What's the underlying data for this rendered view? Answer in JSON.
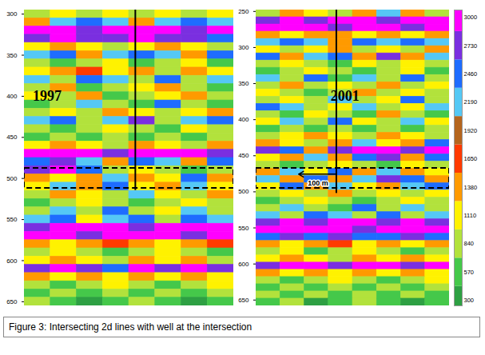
{
  "chart_data": [
    {
      "type": "heatmap",
      "annotations": [
        "1997"
      ],
      "tick_labels": "y",
      "ylim": [
        295,
        655
      ],
      "yticks": [
        300,
        350,
        400,
        450,
        500,
        550,
        600,
        650
      ],
      "y_edges": [
        295,
        305,
        315,
        325,
        335,
        345,
        355,
        365,
        375,
        385,
        395,
        405,
        415,
        425,
        435,
        445,
        455,
        465,
        475,
        485,
        495,
        505,
        515,
        525,
        535,
        545,
        555,
        565,
        575,
        585,
        595,
        605,
        615,
        625,
        635,
        645,
        655
      ],
      "cells": [
        [
          840,
          1110,
          840,
          1110,
          840,
          1110,
          840,
          1110
        ],
        [
          1380,
          2190,
          2460,
          2190,
          1380,
          2190,
          2460,
          2190
        ],
        [
          3000,
          3000,
          2730,
          3000,
          3000,
          3000,
          2730,
          3000
        ],
        [
          2730,
          3000,
          2730,
          2730,
          3000,
          2730,
          2730,
          2460
        ],
        [
          1110,
          1380,
          1110,
          840,
          1110,
          1380,
          1110,
          840
        ],
        [
          2190,
          2460,
          1380,
          2190,
          2460,
          2190,
          1380,
          2460
        ],
        [
          840,
          570,
          840,
          1110,
          570,
          840,
          1110,
          570
        ],
        [
          1110,
          1380,
          1650,
          1110,
          1380,
          840,
          1380,
          1110
        ],
        [
          2190,
          840,
          2460,
          2190,
          840,
          2460,
          840,
          2190
        ],
        [
          840,
          1380,
          570,
          840,
          1110,
          1380,
          840,
          570
        ],
        [
          1110,
          840,
          1380,
          570,
          840,
          1110,
          1380,
          840
        ],
        [
          570,
          840,
          2190,
          840,
          570,
          2460,
          840,
          570
        ],
        [
          840,
          1110,
          840,
          1380,
          1110,
          840,
          1110,
          1380
        ],
        [
          2190,
          2460,
          840,
          2190,
          2730,
          840,
          2190,
          2460
        ],
        [
          840,
          570,
          840,
          1110,
          840,
          570,
          1110,
          840
        ],
        [
          570,
          840,
          570,
          840,
          570,
          840,
          570,
          840
        ],
        [
          1110,
          1380,
          1110,
          840,
          1380,
          1110,
          840,
          1380
        ],
        [
          3000,
          3000,
          3000,
          2730,
          3000,
          3000,
          3000,
          2730
        ],
        [
          2460,
          2730,
          2190,
          1380,
          2460,
          2190,
          1380,
          2460
        ],
        [
          2730,
          3000,
          2460,
          840,
          1110,
          840,
          570,
          840
        ],
        [
          1380,
          1110,
          1380,
          2190,
          1380,
          1110,
          2460,
          1380
        ],
        [
          1110,
          2190,
          1380,
          2460,
          1110,
          1380,
          2190,
          1110
        ],
        [
          840,
          1380,
          1110,
          840,
          2190,
          1110,
          840,
          1380
        ],
        [
          570,
          840,
          1110,
          840,
          570,
          840,
          1110,
          840
        ],
        [
          840,
          2190,
          840,
          2460,
          840,
          1110,
          2190,
          840
        ],
        [
          2190,
          2460,
          1110,
          2190,
          2460,
          840,
          2460,
          2190
        ],
        [
          2730,
          3000,
          3000,
          3000,
          2730,
          3000,
          3000,
          3000
        ],
        [
          3000,
          3000,
          2730,
          3000,
          3000,
          3000,
          2730,
          3000
        ],
        [
          1380,
          1110,
          1380,
          1650,
          1380,
          1110,
          1380,
          1650
        ],
        [
          840,
          1110,
          840,
          570,
          840,
          1110,
          840,
          570
        ],
        [
          1110,
          1380,
          1110,
          840,
          1380,
          1110,
          1380,
          840
        ],
        [
          2730,
          3000,
          2730,
          2460,
          3000,
          2730,
          3000,
          2730
        ],
        [
          1380,
          1110,
          1380,
          1110,
          1380,
          1110,
          1380,
          1110
        ],
        [
          840,
          570,
          840,
          1110,
          840,
          570,
          840,
          1110
        ],
        [
          570,
          840,
          570,
          840,
          570,
          840,
          570,
          840
        ],
        [
          840,
          570,
          300,
          570,
          840,
          570,
          300,
          570
        ]
      ]
    },
    {
      "type": "heatmap",
      "annotations": [
        "2001",
        "100 m"
      ],
      "tick_labels": "y",
      "ylim": [
        248,
        658
      ],
      "yticks": [
        250,
        300,
        350,
        400,
        450,
        500,
        550,
        600,
        650
      ],
      "y_edges": [
        248,
        258,
        268,
        278,
        288,
        298,
        308,
        318,
        328,
        338,
        348,
        358,
        368,
        378,
        388,
        398,
        408,
        418,
        428,
        438,
        448,
        458,
        468,
        478,
        488,
        498,
        508,
        518,
        528,
        538,
        548,
        558,
        568,
        578,
        588,
        598,
        608,
        618,
        628,
        638,
        648,
        658
      ],
      "cells": [
        [
          840,
          1380,
          1110,
          840,
          1380,
          2190,
          1380,
          840
        ],
        [
          2730,
          3000,
          2730,
          3000,
          3000,
          2730,
          3000,
          3000
        ],
        [
          3000,
          3000,
          3000,
          2730,
          3000,
          3000,
          2730,
          3000
        ],
        [
          1380,
          1110,
          1380,
          1380,
          1110,
          1380,
          1110,
          1380
        ],
        [
          2190,
          2460,
          2190,
          1380,
          2460,
          2190,
          2460,
          2190
        ],
        [
          1110,
          840,
          1110,
          1380,
          840,
          1110,
          840,
          1380
        ],
        [
          2460,
          1380,
          2190,
          2460,
          1380,
          2730,
          1380,
          2190
        ],
        [
          840,
          1110,
          840,
          570,
          1110,
          840,
          1110,
          840
        ],
        [
          570,
          840,
          1110,
          840,
          570,
          840,
          1110,
          570
        ],
        [
          2190,
          840,
          2460,
          570,
          2190,
          840,
          2460,
          840
        ],
        [
          840,
          1380,
          840,
          1110,
          840,
          1380,
          840,
          1110
        ],
        [
          1110,
          840,
          570,
          840,
          1380,
          840,
          1110,
          840
        ],
        [
          840,
          1110,
          840,
          2190,
          840,
          1110,
          2460,
          840
        ],
        [
          2460,
          2190,
          840,
          1110,
          2190,
          840,
          1110,
          2190
        ],
        [
          840,
          570,
          1110,
          840,
          570,
          1380,
          840,
          570
        ],
        [
          1110,
          2190,
          840,
          2460,
          1110,
          840,
          2190,
          1110
        ],
        [
          570,
          840,
          570,
          840,
          570,
          840,
          570,
          840
        ],
        [
          840,
          1110,
          1380,
          1110,
          840,
          1380,
          1110,
          840
        ],
        [
          1380,
          1110,
          840,
          1380,
          2190,
          1110,
          1380,
          2460
        ],
        [
          2730,
          2460,
          1380,
          2730,
          3000,
          3000,
          2730,
          3000
        ],
        [
          1110,
          1380,
          2190,
          1380,
          2460,
          2730,
          1380,
          2460
        ],
        [
          840,
          570,
          840,
          1110,
          840,
          570,
          1110,
          840
        ],
        [
          1380,
          2190,
          1110,
          2460,
          1380,
          2190,
          1380,
          1110
        ],
        [
          2190,
          1380,
          2460,
          1380,
          2190,
          2730,
          2460,
          1380
        ],
        [
          1110,
          2460,
          1380,
          2190,
          1110,
          1380,
          2190,
          2460
        ],
        [
          840,
          1110,
          840,
          1380,
          840,
          1110,
          840,
          1110
        ],
        [
          570,
          840,
          1110,
          840,
          570,
          840,
          1110,
          840
        ],
        [
          840,
          2190,
          840,
          570,
          2460,
          840,
          2190,
          840
        ],
        [
          2190,
          840,
          2460,
          2190,
          840,
          2460,
          840,
          2190
        ],
        [
          2730,
          3000,
          2730,
          3000,
          3000,
          2730,
          3000,
          2730
        ],
        [
          3000,
          3000,
          3000,
          3000,
          2730,
          3000,
          3000,
          3000
        ],
        [
          2460,
          2730,
          2460,
          2730,
          2460,
          2460,
          2730,
          2460
        ],
        [
          1380,
          1110,
          1380,
          1650,
          1110,
          1380,
          1110,
          1380
        ],
        [
          840,
          1110,
          570,
          840,
          1110,
          840,
          570,
          840
        ],
        [
          1110,
          1380,
          1110,
          840,
          1380,
          1110,
          1380,
          1110
        ],
        [
          2730,
          3000,
          3000,
          2730,
          3000,
          3000,
          2730,
          3000
        ],
        [
          1380,
          1110,
          1380,
          1110,
          1380,
          1110,
          1380,
          1110
        ],
        [
          840,
          570,
          840,
          1110,
          840,
          570,
          840,
          1110
        ],
        [
          570,
          840,
          570,
          840,
          570,
          840,
          570,
          840
        ],
        [
          840,
          570,
          840,
          570,
          840,
          570,
          840,
          570
        ],
        [
          570,
          840,
          300,
          570,
          840,
          570,
          300,
          570
        ]
      ]
    }
  ],
  "colorbar": {
    "lim": [
      250,
      3070
    ],
    "ticks": [
      300,
      570,
      840,
      1110,
      1380,
      1650,
      1920,
      2190,
      2460,
      2730,
      3000
    ]
  },
  "caption": "Figure 3: Intersecting 2d lines with well at the intersection"
}
